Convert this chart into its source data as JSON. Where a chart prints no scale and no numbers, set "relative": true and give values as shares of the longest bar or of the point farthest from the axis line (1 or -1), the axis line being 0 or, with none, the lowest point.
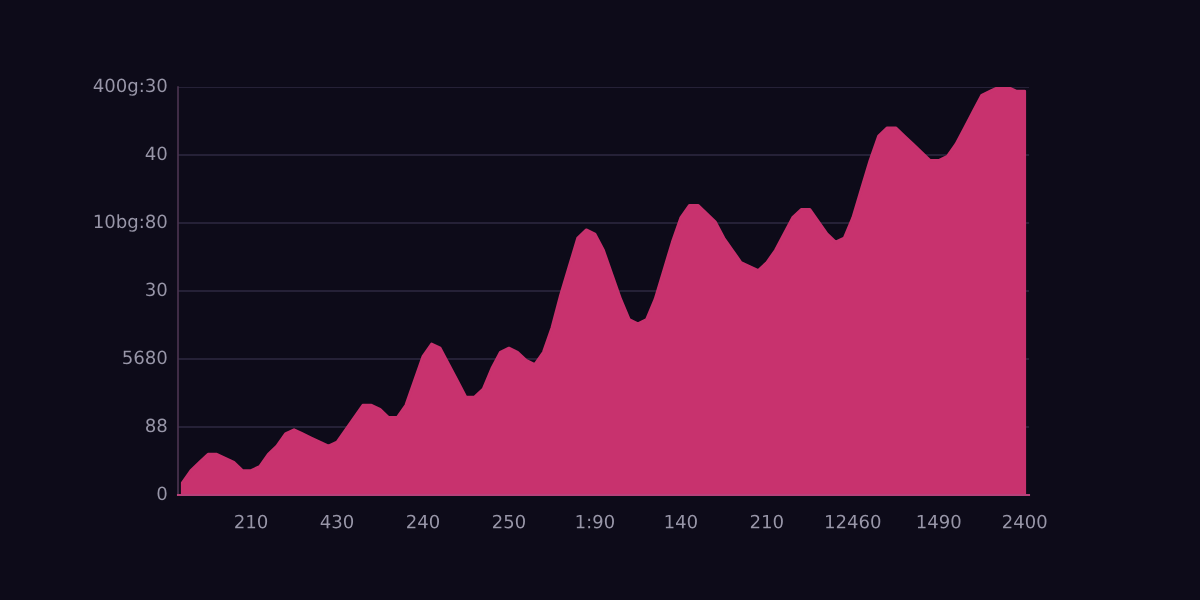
{
  "chart_data": {
    "type": "area",
    "relative": true,
    "categories": [
      null,
      null,
      null,
      null,
      null,
      null,
      null,
      null,
      "210",
      null,
      null,
      null,
      null,
      null,
      null,
      null,
      null,
      null,
      "430",
      null,
      null,
      null,
      null,
      null,
      null,
      null,
      null,
      null,
      "240",
      null,
      null,
      null,
      null,
      null,
      null,
      null,
      null,
      null,
      "250",
      null,
      null,
      null,
      null,
      null,
      null,
      null,
      null,
      null,
      "1:90",
      null,
      null,
      null,
      null,
      null,
      null,
      null,
      null,
      null,
      "140",
      null,
      null,
      null,
      null,
      null,
      null,
      null,
      null,
      null,
      "210",
      null,
      null,
      null,
      null,
      null,
      null,
      null,
      null,
      null,
      "12460",
      null,
      null,
      null,
      null,
      null,
      null,
      null,
      null,
      null,
      "1490",
      null,
      null,
      null,
      null,
      null,
      null,
      null,
      null,
      null,
      "2400"
    ],
    "values": [
      0.03,
      0.06,
      0.08,
      0.1,
      0.1,
      0.09,
      0.08,
      0.06,
      0.06,
      0.07,
      0.1,
      0.12,
      0.15,
      0.16,
      0.15,
      0.14,
      0.13,
      0.12,
      0.13,
      0.16,
      0.19,
      0.22,
      0.22,
      0.21,
      0.19,
      0.19,
      0.22,
      0.28,
      0.34,
      0.37,
      0.36,
      0.32,
      0.28,
      0.24,
      0.24,
      0.26,
      0.31,
      0.35,
      0.36,
      0.35,
      0.33,
      0.32,
      0.35,
      0.41,
      0.49,
      0.56,
      0.63,
      0.65,
      0.64,
      0.6,
      0.54,
      0.48,
      0.43,
      0.42,
      0.43,
      0.48,
      0.55,
      0.62,
      0.68,
      0.71,
      0.71,
      0.69,
      0.67,
      0.63,
      0.6,
      0.57,
      0.56,
      0.55,
      0.57,
      0.6,
      0.64,
      0.68,
      0.7,
      0.7,
      0.67,
      0.64,
      0.62,
      0.63,
      0.68,
      0.75,
      0.82,
      0.88,
      0.9,
      0.9,
      0.88,
      0.86,
      0.84,
      0.82,
      0.82,
      0.83,
      0.86,
      0.9,
      0.94,
      0.98,
      0.99,
      1.0,
      1.0,
      0.99,
      0.99
    ],
    "color": "#c8326e",
    "grid": "y",
    "annotations": [
      "400g:30",
      "40",
      "10bg:80",
      "30",
      "5680",
      "88",
      "0"
    ]
  }
}
